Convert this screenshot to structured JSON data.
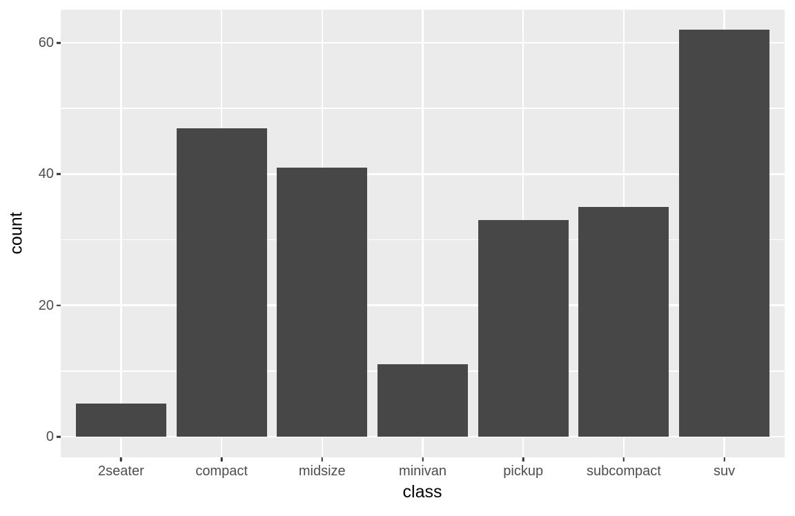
{
  "chart_data": {
    "type": "bar",
    "title": "",
    "categories": [
      "2seater",
      "compact",
      "midsize",
      "minivan",
      "pickup",
      "subcompact",
      "suv"
    ],
    "values": [
      5,
      47,
      41,
      11,
      33,
      35,
      62
    ],
    "xlabel": "class",
    "ylabel": "count",
    "y_ticks": [
      0,
      20,
      40,
      60
    ],
    "y_minor_ticks": [
      10,
      30,
      50
    ],
    "ylim": [
      0,
      62
    ],
    "grid": "on",
    "legend": "none",
    "colors": {
      "bar_fill": "#474747",
      "panel_background": "#EBEBEB",
      "gridline": "#FFFFFF",
      "tick_label": "#4D4D4D",
      "axis_title": "#000000",
      "tick_mark": "#333333",
      "figure_background": "#FFFFFF"
    }
  }
}
